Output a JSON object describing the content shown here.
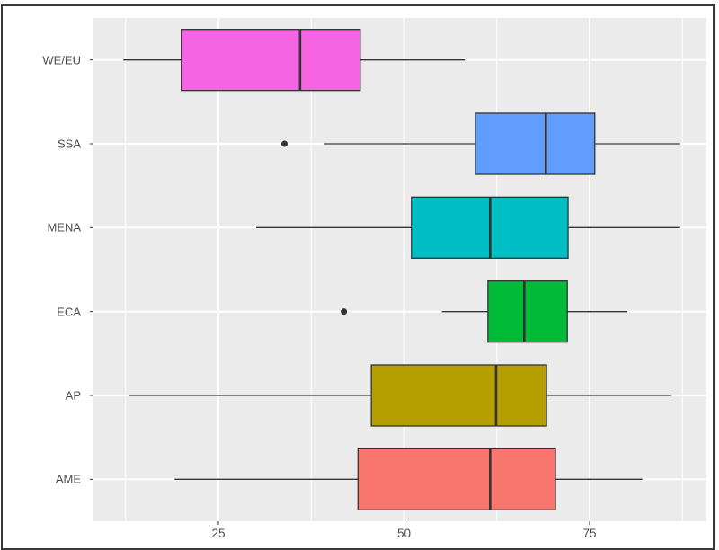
{
  "title_fragment": "",
  "chart_data": {
    "type": "boxplot",
    "orientation": "horizontal",
    "title": "",
    "xlabel": "",
    "ylabel": "",
    "xlim": [
      7.5,
      90.5
    ],
    "x_ticks": [
      25,
      50,
      75
    ],
    "x_tick_labels": [
      "25",
      "50",
      "75"
    ],
    "x_minor_gridlines": [
      12.5,
      37.5,
      62.5,
      87.5
    ],
    "grid": true,
    "legend": null,
    "categories": [
      "WE/EU",
      "SSA",
      "MENA",
      "ECA",
      "AP",
      "AME"
    ],
    "series": [
      {
        "name": "WE/EU",
        "color": "#F564E3",
        "whisker_low": 12.2,
        "q1": 20.0,
        "median": 36.0,
        "q3": 44.1,
        "whisker_high": 58.2,
        "outliers": []
      },
      {
        "name": "SSA",
        "color": "#619CFF",
        "whisker_low": 39.2,
        "q1": 59.6,
        "median": 69.1,
        "q3": 75.7,
        "whisker_high": 87.2,
        "outliers": [
          33.9
        ]
      },
      {
        "name": "MENA",
        "color": "#00BFC4",
        "whisker_low": 30.1,
        "q1": 51.0,
        "median": 61.6,
        "q3": 72.1,
        "whisker_high": 87.2,
        "outliers": []
      },
      {
        "name": "ECA",
        "color": "#00BA38",
        "whisker_low": 55.1,
        "q1": 61.3,
        "median": 66.2,
        "q3": 72.0,
        "whisker_high": 80.1,
        "outliers": [
          41.9
        ]
      },
      {
        "name": "AP",
        "color": "#B79F00",
        "whisker_low": 13.0,
        "q1": 45.6,
        "median": 62.4,
        "q3": 69.2,
        "whisker_high": 86.0,
        "outliers": []
      },
      {
        "name": "AME",
        "color": "#F8766D",
        "whisker_low": 19.1,
        "q1": 43.8,
        "median": 61.6,
        "q3": 70.4,
        "whisker_high": 82.1,
        "outliers": []
      }
    ]
  },
  "colors": {
    "panel_background": "#EBEBEB",
    "gridline": "#FFFFFF",
    "axis_text": "#4D4D4D",
    "box_outline": "#333333"
  }
}
